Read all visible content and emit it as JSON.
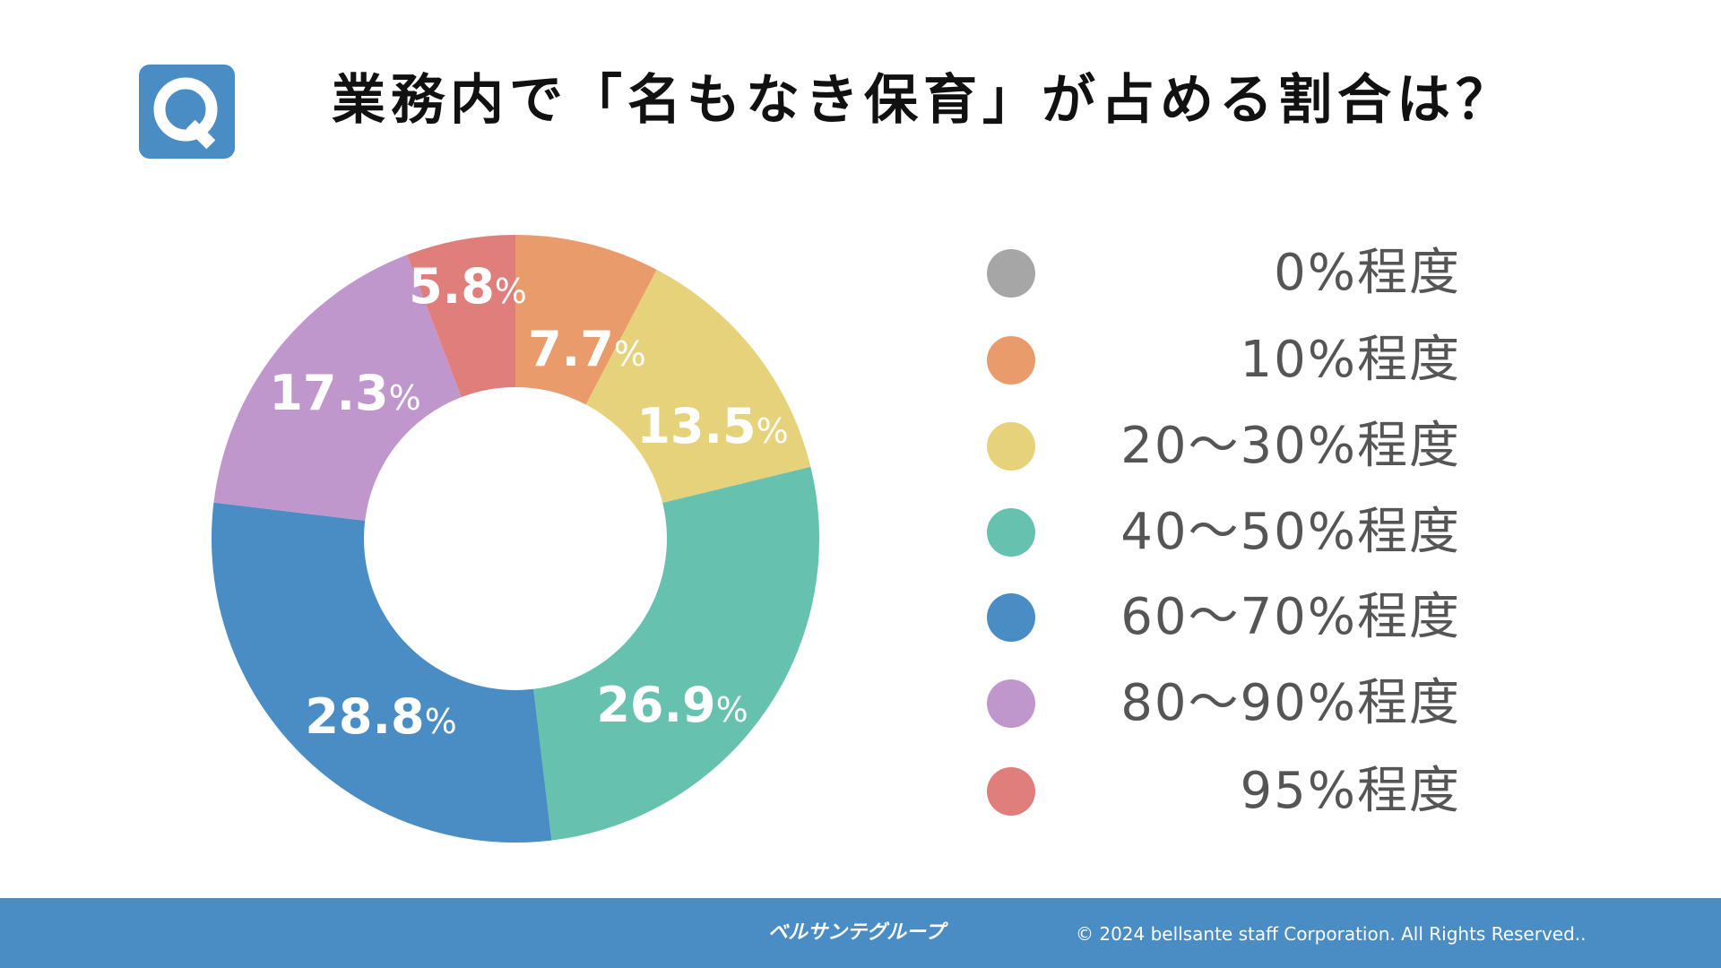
{
  "header": {
    "icon": "q-icon",
    "title": "業務内で「名もなき保育」が占める割合は？"
  },
  "chart_data": {
    "type": "pie",
    "donut": true,
    "categories": [
      "0%程度",
      "10%程度",
      "20〜30%程度",
      "40〜50%程度",
      "60〜70%程度",
      "80〜90%程度",
      "95%程度"
    ],
    "values": [
      0,
      7.7,
      13.5,
      26.9,
      28.8,
      17.3,
      5.8
    ],
    "data_labels": [
      "",
      "7.7",
      "13.5",
      "26.9",
      "28.8",
      "17.3",
      "5.8"
    ],
    "unit": "%",
    "colors": [
      "#a6a6a6",
      "#ea9b6b",
      "#e5d27b",
      "#66c2ae",
      "#4a8cc4",
      "#c097cd",
      "#e07e7c"
    ],
    "start": "top",
    "direction": "clockwise",
    "legend": "right"
  },
  "footer": {
    "logo": "ベルサンテグループ",
    "copyright": "© 2024 bellsante staff Corporation. All Rights Reserved.."
  }
}
